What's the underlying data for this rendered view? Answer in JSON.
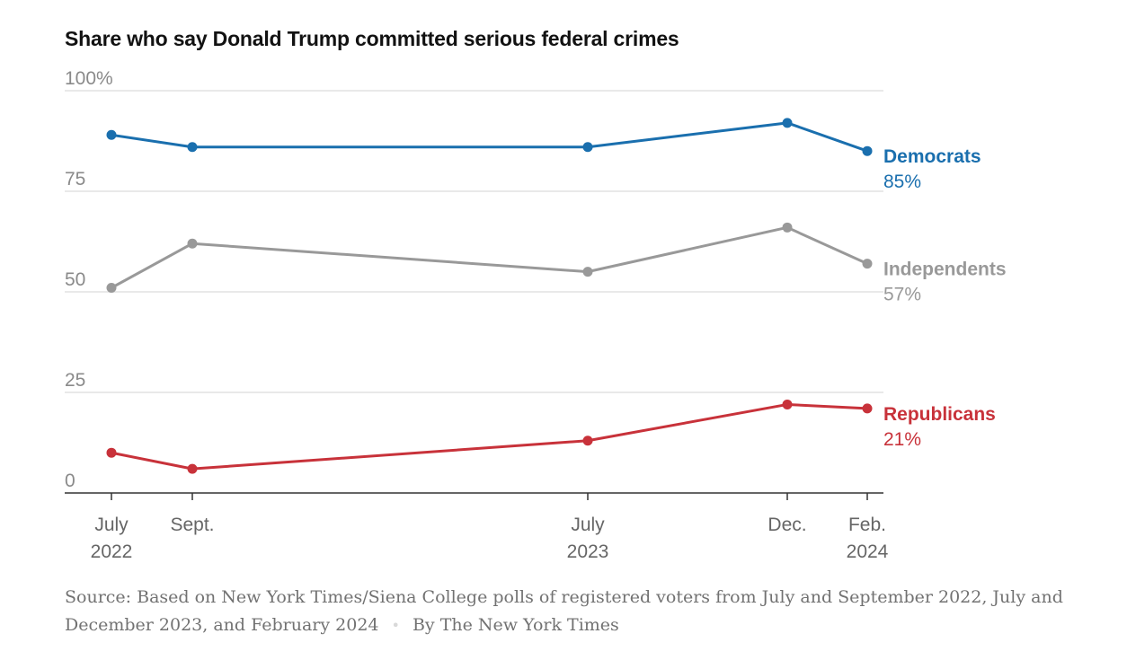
{
  "chart_data": {
    "type": "line",
    "title": "Share who say Donald Trump committed serious federal crimes",
    "x": [
      "July 2022",
      "Sept. 2022",
      "July 2023",
      "Dec. 2023",
      "Feb. 2024"
    ],
    "x_tick_labels": [
      {
        "line1": "July",
        "line2": "2022"
      },
      {
        "line1": "Sept.",
        "line2": ""
      },
      {
        "line1": "July",
        "line2": "2023"
      },
      {
        "line1": "Dec.",
        "line2": ""
      },
      {
        "line1": "Feb.",
        "line2": "2024"
      }
    ],
    "y_ticks": [
      "100%",
      "75",
      "50",
      "25",
      "0"
    ],
    "ylim": [
      0,
      100
    ],
    "grid": true,
    "series": [
      {
        "name": "Democrats",
        "end_label": "85%",
        "color": "#1a6fae",
        "values": [
          89,
          86,
          86,
          92,
          85
        ]
      },
      {
        "name": "Independents",
        "end_label": "57%",
        "color": "#999999",
        "values": [
          51,
          62,
          55,
          66,
          57
        ]
      },
      {
        "name": "Republicans",
        "end_label": "21%",
        "color": "#c8323a",
        "values": [
          10,
          6,
          13,
          22,
          21
        ]
      }
    ]
  },
  "footer": {
    "source": "Source: Based on New York Times/Siena College polls of registered voters from July and September 2022, July and December 2023, and February 2024",
    "separator": "•",
    "credit": "By The New York Times"
  }
}
